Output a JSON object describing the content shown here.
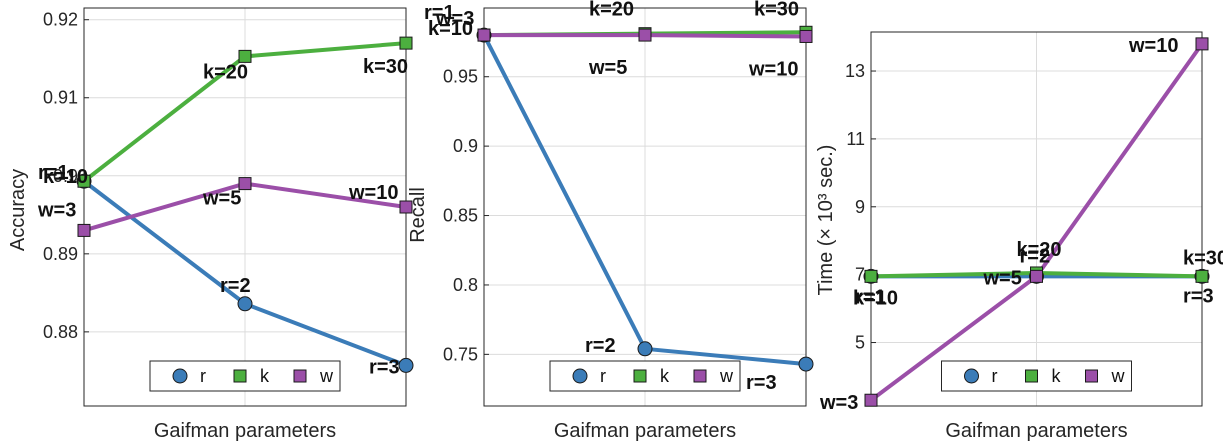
{
  "chart_data": [
    {
      "type": "line",
      "title": "",
      "xlabel": "Gaifman parameters",
      "ylabel": "Accuracy",
      "ylim": [
        0.8705,
        0.9215
      ],
      "yticks": [
        0.88,
        0.89,
        0.9,
        0.91,
        0.92
      ],
      "ytick_labels": [
        "0.88",
        "0.89",
        "0.9",
        "0.91",
        "0.92"
      ],
      "grid": true,
      "legend_position": "bottom-center",
      "series": [
        {
          "name": "r",
          "color": "#3B7CB8",
          "marker": "circle",
          "values": [
            0.8993,
            0.8836,
            0.8757
          ],
          "labels": [
            "r=1",
            "r=2",
            "r=3"
          ]
        },
        {
          "name": "k",
          "color": "#4CAF3F",
          "marker": "square",
          "values": [
            0.8993,
            0.9153,
            0.917
          ],
          "labels": [
            "k=10",
            "k=20",
            "k=30"
          ]
        },
        {
          "name": "w",
          "color": "#9B4FA8",
          "marker": "square",
          "values": [
            0.893,
            0.899,
            0.896
          ],
          "labels": [
            "w=3",
            "w=5",
            "w=10"
          ]
        }
      ]
    },
    {
      "type": "line",
      "title": "",
      "xlabel": "Gaifman parameters",
      "ylabel": "Recall",
      "ylim": [
        0.7128,
        0.9995
      ],
      "yticks": [
        0.75,
        0.8,
        0.85,
        0.9,
        0.95
      ],
      "ytick_labels": [
        "0.75",
        "0.8",
        "0.85",
        "0.9",
        "0.95"
      ],
      "grid": true,
      "legend_position": "bottom-center",
      "series": [
        {
          "name": "r",
          "color": "#3B7CB8",
          "marker": "circle",
          "values": [
            0.98,
            0.754,
            0.743
          ],
          "labels": [
            "r=1",
            "r=2",
            "r=3"
          ]
        },
        {
          "name": "k",
          "color": "#4CAF3F",
          "marker": "square",
          "values": [
            0.98,
            0.981,
            0.982
          ],
          "labels": [
            "k=10",
            "k=20",
            "k=30"
          ]
        },
        {
          "name": "w",
          "color": "#9B4FA8",
          "marker": "square",
          "values": [
            0.98,
            0.98,
            0.979
          ],
          "labels": [
            "w=3",
            "w=5",
            "w=10"
          ]
        }
      ]
    },
    {
      "type": "line",
      "title": "",
      "xlabel": "Gaifman parameters",
      "ylabel": "Time (× 10³ sec.)",
      "ylim": [
        3.13,
        14.15
      ],
      "yticks": [
        5,
        7,
        9,
        11,
        13
      ],
      "ytick_labels": [
        "5",
        "7",
        "9",
        "11",
        "13"
      ],
      "grid": true,
      "legend_position": "bottom-center",
      "series": [
        {
          "name": "r",
          "color": "#3B7CB8",
          "marker": "circle",
          "values": [
            6.95,
            6.95,
            6.95
          ],
          "labels": [
            "r=1",
            "r=2",
            "r=3"
          ]
        },
        {
          "name": "k",
          "color": "#4CAF3F",
          "marker": "square",
          "values": [
            6.95,
            7.05,
            6.95
          ],
          "labels": [
            "k=10",
            "k=20",
            "k=30"
          ]
        },
        {
          "name": "w",
          "color": "#9B4FA8",
          "marker": "square",
          "values": [
            3.3,
            6.95,
            13.8
          ],
          "labels": [
            "w=3",
            "w=5",
            "w=10"
          ]
        }
      ]
    }
  ]
}
